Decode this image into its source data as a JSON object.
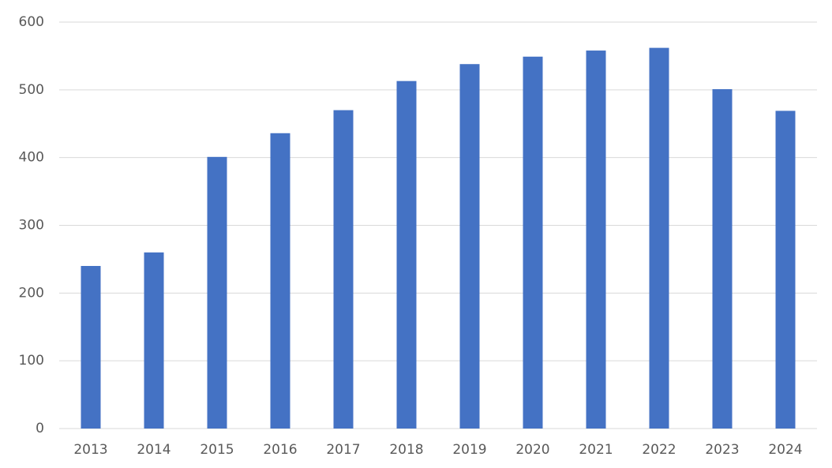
{
  "chart_data": {
    "type": "bar",
    "categories": [
      "2013",
      "2014",
      "2015",
      "2016",
      "2017",
      "2018",
      "2019",
      "2020",
      "2021",
      "2022",
      "2023",
      "2024"
    ],
    "values": [
      240,
      260,
      401,
      436,
      470,
      513,
      538,
      549,
      558,
      562,
      501,
      469
    ],
    "color": "#4472c4",
    "ylim": [
      0,
      600
    ],
    "yticks": [
      0,
      100,
      200,
      300,
      400,
      500,
      600
    ],
    "grid": true
  }
}
